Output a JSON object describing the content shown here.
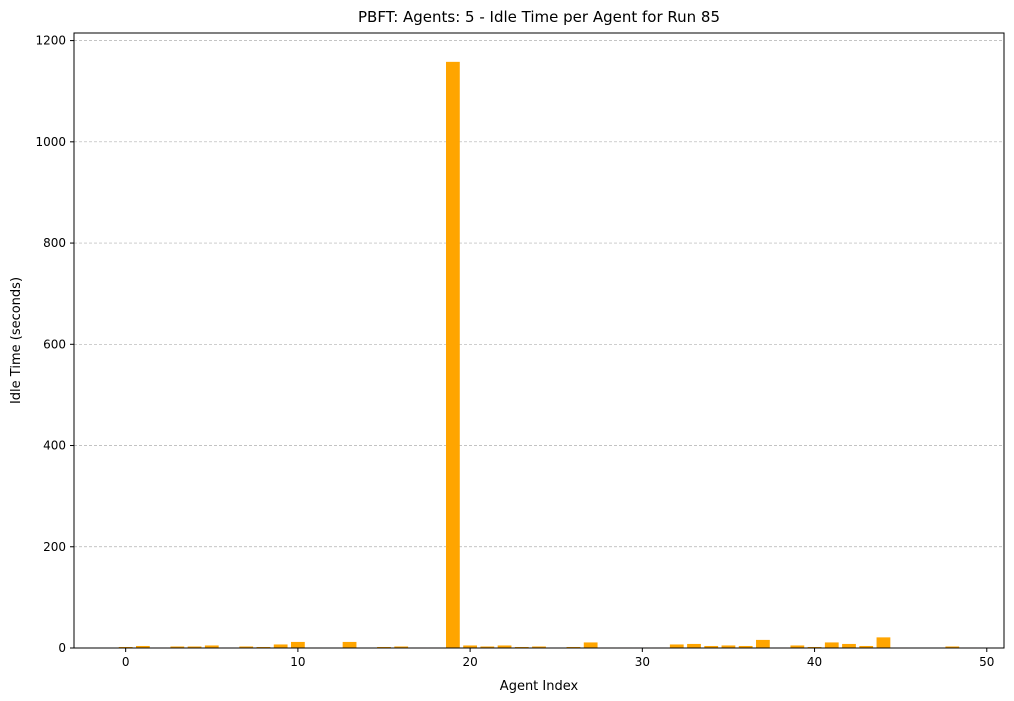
{
  "chart_data": {
    "type": "bar",
    "title": "PBFT: Agents: 5 - Idle Time per Agent for Run 85",
    "xlabel": "Agent Index",
    "ylabel": "Idle Time (seconds)",
    "x": [
      0,
      1,
      2,
      3,
      4,
      5,
      6,
      7,
      8,
      9,
      10,
      11,
      12,
      13,
      14,
      15,
      16,
      17,
      18,
      19,
      20,
      21,
      22,
      23,
      24,
      25,
      26,
      27,
      28,
      29,
      30,
      31,
      32,
      33,
      34,
      35,
      36,
      37,
      38,
      39,
      40,
      41,
      42,
      43,
      44,
      45,
      46,
      47,
      48,
      49,
      50
    ],
    "values": [
      2,
      4,
      1,
      3,
      3,
      5,
      1,
      3,
      2,
      7,
      12,
      1,
      0,
      12,
      0,
      2,
      3,
      1,
      1,
      1158,
      5,
      3,
      5,
      2,
      3,
      1,
      2,
      11,
      1,
      1,
      1,
      1,
      7,
      8,
      4,
      5,
      4,
      16,
      1,
      5,
      2,
      11,
      8,
      4,
      21,
      1,
      0,
      0,
      3,
      1,
      0
    ],
    "xlim": [
      -3,
      51
    ],
    "ylim": [
      0,
      1215
    ],
    "xticks": [
      0,
      10,
      20,
      30,
      40,
      50
    ],
    "yticks": [
      0,
      200,
      400,
      600,
      800,
      1000,
      1200
    ],
    "bar_color": "#FFA500",
    "grid_color": "#b0b0b0",
    "grid": "y-dashed"
  }
}
